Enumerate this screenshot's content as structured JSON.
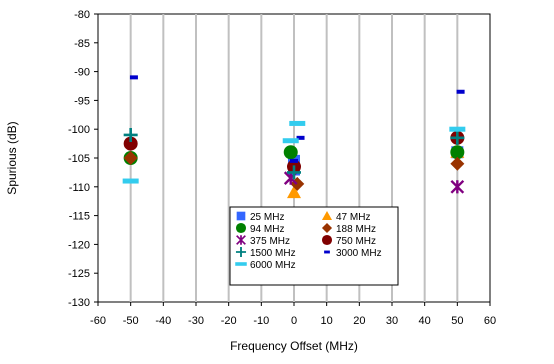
{
  "chart_data": {
    "type": "scatter",
    "title": "",
    "xlabel": "Frequency Offset (MHz)",
    "ylabel": "Spurious (dB)",
    "xlim": [
      -60,
      60
    ],
    "ylim": [
      -130,
      -80
    ],
    "x_ticks": [
      -60,
      -50,
      -40,
      -30,
      -20,
      -10,
      0,
      10,
      20,
      30,
      40,
      50,
      60
    ],
    "y_ticks": [
      -80,
      -85,
      -90,
      -95,
      -100,
      -105,
      -110,
      -115,
      -120,
      -125,
      -130
    ],
    "grid": "vertical",
    "legend_position": "bottom-center",
    "series": [
      {
        "name": "25 MHz",
        "marker": "square",
        "color": "#3366ff",
        "points": [
          [
            0,
            -105.5
          ],
          [
            0,
            -107
          ],
          [
            50,
            -104
          ]
        ]
      },
      {
        "name": "47 MHz",
        "marker": "triangle",
        "color": "#ff9900",
        "points": [
          [
            0,
            -111
          ],
          [
            50,
            -104
          ]
        ]
      },
      {
        "name": "94 MHz",
        "marker": "circle",
        "color": "#008000",
        "points": [
          [
            -50,
            -105
          ],
          [
            -1,
            -104
          ],
          [
            50,
            -104
          ]
        ]
      },
      {
        "name": "188 MHz",
        "marker": "diamond",
        "color": "#993300",
        "points": [
          [
            -50,
            -105
          ],
          [
            1,
            -109.5
          ],
          [
            50,
            -106
          ]
        ]
      },
      {
        "name": "375 MHz",
        "marker": "star",
        "color": "#800080",
        "points": [
          [
            -1,
            -108.5
          ],
          [
            50,
            -110
          ]
        ]
      },
      {
        "name": "750 MHz",
        "marker": "circle",
        "color": "#800000",
        "points": [
          [
            -50,
            -102.5
          ],
          [
            0,
            -106.5
          ],
          [
            50,
            -101.5
          ]
        ]
      },
      {
        "name": "1500 MHz",
        "marker": "plus",
        "color": "#008080",
        "points": [
          [
            -50,
            -101
          ],
          [
            0,
            -107.5
          ],
          [
            50,
            -101.5
          ]
        ]
      },
      {
        "name": "3000 MHz",
        "marker": "dash",
        "color": "#0000cc",
        "points": [
          [
            -49,
            -91
          ],
          [
            0,
            -105.5
          ],
          [
            2,
            -101.5
          ],
          [
            51,
            -93.5
          ]
        ]
      },
      {
        "name": "6000 MHz",
        "marker": "dash-wide",
        "color": "#33ccee",
        "points": [
          [
            -50,
            -109
          ],
          [
            -1,
            -102
          ],
          [
            1,
            -99
          ],
          [
            50,
            -100
          ]
        ]
      }
    ]
  }
}
